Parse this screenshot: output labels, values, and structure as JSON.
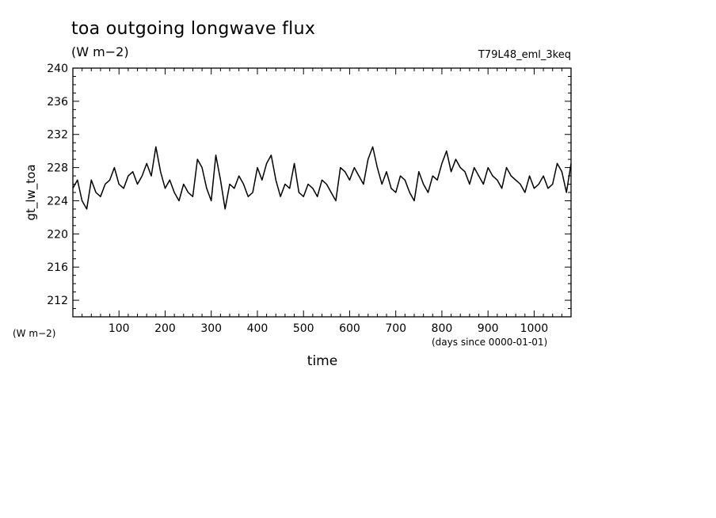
{
  "chart_data": {
    "type": "line",
    "title": "toa outgoing longwave flux",
    "subtitle": "(W m−2)",
    "run_label": "T79L48_eml_3keq",
    "ylabel": "gt_lw_toa",
    "ylabel_units": "(W m−2)",
    "xlabel": "time",
    "xlabel_units": "(days since 0000-01-01)",
    "xlim": [
      0,
      1080
    ],
    "ylim": [
      210,
      240
    ],
    "x_ticks": [
      100,
      200,
      300,
      400,
      500,
      600,
      700,
      800,
      900,
      1000
    ],
    "y_ticks": [
      212,
      216,
      220,
      224,
      228,
      232,
      236,
      240
    ],
    "grid": false,
    "line_color": "#000000",
    "series": [
      {
        "x": [
          0,
          10,
          20,
          30,
          40,
          50,
          60,
          70,
          80,
          90,
          100,
          110,
          120,
          130,
          140,
          150,
          160,
          170,
          180,
          190,
          200,
          210,
          220,
          230,
          240,
          250,
          260,
          270,
          280,
          290,
          300,
          310,
          320,
          330,
          340,
          350,
          360,
          370,
          380,
          390,
          400,
          410,
          420,
          430,
          440,
          450,
          460,
          470,
          480,
          490,
          500,
          510,
          520,
          530,
          540,
          550,
          560,
          570,
          580,
          590,
          600,
          610,
          620,
          630,
          640,
          650,
          660,
          670,
          680,
          690,
          700,
          710,
          720,
          730,
          740,
          750,
          760,
          770,
          780,
          790,
          800,
          810,
          820,
          830,
          840,
          850,
          860,
          870,
          880,
          890,
          900,
          910,
          920,
          930,
          940,
          950,
          960,
          970,
          980,
          990,
          1000,
          1010,
          1020,
          1030,
          1040,
          1050,
          1060,
          1070,
          1080
        ],
        "values": [
          225.5,
          226.5,
          224.0,
          223.0,
          226.5,
          225.0,
          224.5,
          226.0,
          226.5,
          228.0,
          226.0,
          225.5,
          227.0,
          227.5,
          226.0,
          227.0,
          228.5,
          227.0,
          230.5,
          227.5,
          225.5,
          226.5,
          225.0,
          224.0,
          226.0,
          225.0,
          224.5,
          229.0,
          228.0,
          225.5,
          224.0,
          229.5,
          226.5,
          223.0,
          226.0,
          225.5,
          227.0,
          226.0,
          224.5,
          225.0,
          228.0,
          226.5,
          228.5,
          229.5,
          226.5,
          224.5,
          226.0,
          225.5,
          228.5,
          225.0,
          224.5,
          226.0,
          225.5,
          224.5,
          226.5,
          226.0,
          225.0,
          224.0,
          228.0,
          227.5,
          226.5,
          228.0,
          227.0,
          226.0,
          229.0,
          230.5,
          228.0,
          226.0,
          227.5,
          225.5,
          225.0,
          227.0,
          226.5,
          225.0,
          224.0,
          227.5,
          226.0,
          225.0,
          227.0,
          226.5,
          228.5,
          230.0,
          227.5,
          229.0,
          228.0,
          227.5,
          226.0,
          228.0,
          227.0,
          226.0,
          228.0,
          227.0,
          226.5,
          225.5,
          228.0,
          227.0,
          226.5,
          226.0,
          225.0,
          227.0,
          225.5,
          226.0,
          227.0,
          225.5,
          226.0,
          228.5,
          227.5,
          225.0,
          228.5
        ]
      }
    ]
  }
}
